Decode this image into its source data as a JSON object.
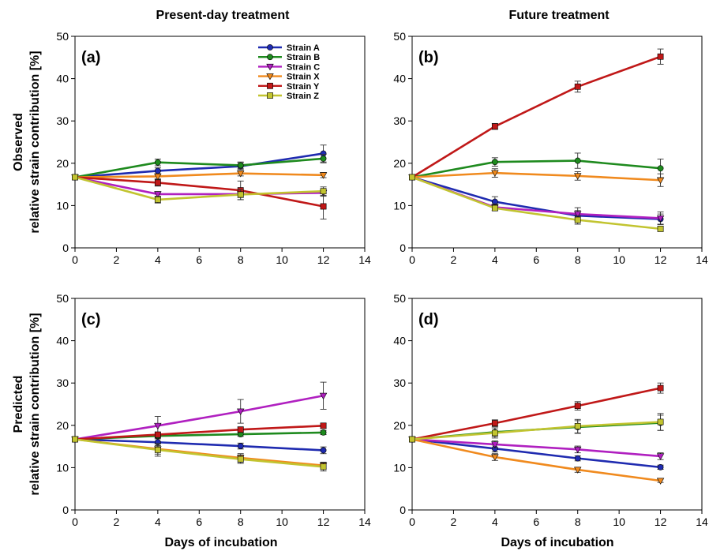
{
  "column_titles": [
    "Present-day treatment",
    "Future treatment"
  ],
  "row_ylabels": [
    [
      "Observed",
      "relative strain contribution [%]"
    ],
    [
      "Predicted",
      "relative strain contribution [%]"
    ]
  ],
  "xlabel": "Days of incubation",
  "series_styles": [
    {
      "name": "Strain A",
      "color": "#1f2bb0",
      "marker": "circle"
    },
    {
      "name": "Strain B",
      "color": "#1e8a1e",
      "marker": "circle"
    },
    {
      "name": "Strain C",
      "color": "#b020c0",
      "marker": "triangle-down"
    },
    {
      "name": "Strain X",
      "color": "#f08a1e",
      "marker": "triangle-down"
    },
    {
      "name": "Strain Y",
      "color": "#c01818",
      "marker": "square"
    },
    {
      "name": "Strain Z",
      "color": "#c2c430",
      "marker": "square"
    }
  ],
  "chart_data": [
    {
      "panel": "(a)",
      "type": "line",
      "x": [
        0,
        4,
        8,
        12
      ],
      "xlim": [
        0,
        14
      ],
      "ylim": [
        0,
        50
      ],
      "xticks": [
        0,
        2,
        4,
        6,
        8,
        10,
        12,
        14
      ],
      "yticks": [
        0,
        10,
        20,
        30,
        40,
        50
      ],
      "legend": "top-right",
      "series": [
        {
          "name": "Strain A",
          "values": [
            16.7,
            18.2,
            19.3,
            22.3
          ],
          "errors": [
            0,
            0.7,
            0.8,
            2.0
          ]
        },
        {
          "name": "Strain B",
          "values": [
            16.7,
            20.2,
            19.5,
            21.1
          ],
          "errors": [
            0,
            0.8,
            0.8,
            1.0
          ]
        },
        {
          "name": "Strain C",
          "values": [
            16.7,
            12.7,
            12.7,
            13.0
          ],
          "errors": [
            0,
            0.6,
            0.8,
            0.8
          ]
        },
        {
          "name": "Strain X",
          "values": [
            16.7,
            16.9,
            17.6,
            17.2
          ],
          "errors": [
            0,
            0.6,
            0.6,
            0.6
          ]
        },
        {
          "name": "Strain Y",
          "values": [
            16.7,
            15.4,
            13.6,
            9.8
          ],
          "errors": [
            0,
            0.8,
            2.2,
            3.0
          ]
        },
        {
          "name": "Strain Z",
          "values": [
            16.7,
            11.4,
            12.6,
            13.4
          ],
          "errors": [
            0,
            0.8,
            1.2,
            1.0
          ]
        }
      ]
    },
    {
      "panel": "(b)",
      "type": "line",
      "x": [
        0,
        4,
        8,
        12
      ],
      "xlim": [
        0,
        14
      ],
      "ylim": [
        0,
        50
      ],
      "xticks": [
        0,
        2,
        4,
        6,
        8,
        10,
        12,
        14
      ],
      "yticks": [
        0,
        10,
        20,
        30,
        40,
        50
      ],
      "series": [
        {
          "name": "Strain A",
          "values": [
            16.7,
            10.9,
            7.6,
            6.8
          ],
          "errors": [
            0,
            1.2,
            1.2,
            1.2
          ]
        },
        {
          "name": "Strain B",
          "values": [
            16.7,
            20.3,
            20.6,
            18.8
          ],
          "errors": [
            0,
            1.0,
            1.8,
            2.2
          ]
        },
        {
          "name": "Strain C",
          "values": [
            16.7,
            9.6,
            8.0,
            7.0
          ],
          "errors": [
            0,
            0.8,
            1.5,
            1.5
          ]
        },
        {
          "name": "Strain X",
          "values": [
            16.7,
            17.7,
            17.0,
            16.0
          ],
          "errors": [
            0,
            1.0,
            1.0,
            1.5
          ]
        },
        {
          "name": "Strain Y",
          "values": [
            16.7,
            28.7,
            38.1,
            45.2
          ],
          "errors": [
            0,
            0.7,
            1.3,
            1.8
          ]
        },
        {
          "name": "Strain Z",
          "values": [
            16.7,
            9.4,
            6.6,
            4.5
          ],
          "errors": [
            0,
            0.6,
            1.0,
            0.6
          ]
        }
      ]
    },
    {
      "panel": "(c)",
      "type": "line",
      "x": [
        0,
        4,
        8,
        12
      ],
      "xlim": [
        0,
        14
      ],
      "ylim": [
        0,
        50
      ],
      "xticks": [
        0,
        2,
        4,
        6,
        8,
        10,
        12,
        14
      ],
      "yticks": [
        0,
        10,
        20,
        30,
        40,
        50
      ],
      "series": [
        {
          "name": "Strain A",
          "values": [
            16.7,
            16.0,
            15.1,
            14.1
          ],
          "errors": [
            0,
            0.8,
            0.7,
            0.8
          ]
        },
        {
          "name": "Strain B",
          "values": [
            16.7,
            17.5,
            17.9,
            18.3
          ],
          "errors": [
            0,
            0.5,
            0.5,
            0.5
          ]
        },
        {
          "name": "Strain C",
          "values": [
            16.7,
            19.9,
            23.3,
            27.0
          ],
          "errors": [
            0,
            2.2,
            2.8,
            3.2
          ]
        },
        {
          "name": "Strain X",
          "values": [
            16.7,
            14.4,
            12.3,
            10.5
          ],
          "errors": [
            0,
            1.2,
            1.0,
            0.8
          ]
        },
        {
          "name": "Strain Y",
          "values": [
            16.7,
            17.8,
            19.0,
            19.9
          ],
          "errors": [
            0,
            0.5,
            0.6,
            0.6
          ]
        },
        {
          "name": "Strain Z",
          "values": [
            16.7,
            14.2,
            12.0,
            10.2
          ],
          "errors": [
            0,
            1.5,
            1.0,
            1.0
          ]
        }
      ]
    },
    {
      "panel": "(d)",
      "type": "line",
      "x": [
        0,
        4,
        8,
        12
      ],
      "xlim": [
        0,
        14
      ],
      "ylim": [
        0,
        50
      ],
      "xticks": [
        0,
        2,
        4,
        6,
        8,
        10,
        12,
        14
      ],
      "yticks": [
        0,
        10,
        20,
        30,
        40,
        50
      ],
      "series": [
        {
          "name": "Strain A",
          "values": [
            16.7,
            14.5,
            12.2,
            10.1
          ],
          "errors": [
            0,
            0.8,
            0.6,
            0.5
          ]
        },
        {
          "name": "Strain B",
          "values": [
            16.7,
            18.4,
            19.6,
            20.6
          ],
          "errors": [
            0,
            1.0,
            1.5,
            1.8
          ]
        },
        {
          "name": "Strain C",
          "values": [
            16.7,
            15.5,
            14.3,
            12.7
          ],
          "errors": [
            0,
            0.8,
            0.8,
            0.8
          ]
        },
        {
          "name": "Strain X",
          "values": [
            16.7,
            12.5,
            9.5,
            6.9
          ],
          "errors": [
            0,
            0.8,
            0.6,
            0.4
          ]
        },
        {
          "name": "Strain Y",
          "values": [
            16.7,
            20.5,
            24.6,
            28.8
          ],
          "errors": [
            0,
            0.8,
            1.0,
            1.2
          ]
        },
        {
          "name": "Strain Z",
          "values": [
            16.7,
            18.2,
            19.8,
            20.8
          ],
          "errors": [
            0,
            1.2,
            1.6,
            2.0
          ]
        }
      ]
    }
  ]
}
